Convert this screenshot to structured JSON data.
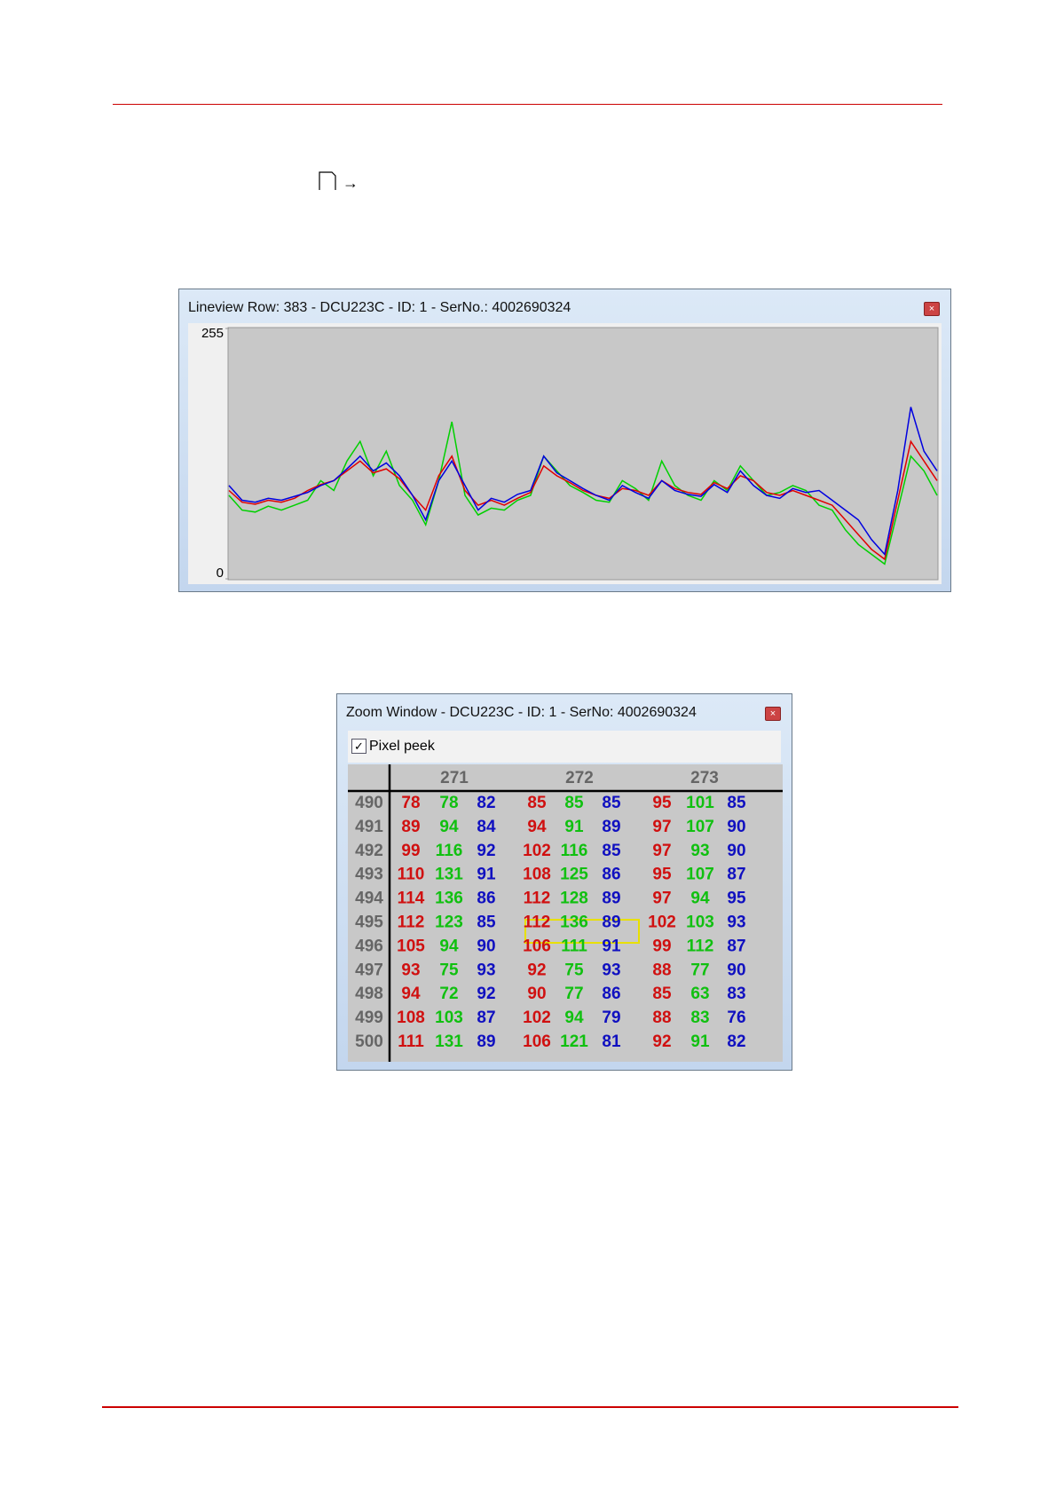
{
  "menu_arrow": "→",
  "lineview": {
    "title": "Lineview Row: 383 - DCU223C - ID: 1 - SerNo.: 4002690324",
    "type": "line",
    "ylim": [
      0,
      255
    ],
    "yticks": [
      0,
      255
    ],
    "series": [
      {
        "color": "#00d000",
        "values": [
          85,
          70,
          68,
          74,
          70,
          75,
          80,
          100,
          90,
          120,
          140,
          105,
          130,
          95,
          80,
          55,
          100,
          160,
          85,
          65,
          72,
          70,
          80,
          85,
          125,
          110,
          95,
          88,
          80,
          78,
          100,
          92,
          80,
          120,
          95,
          85,
          80,
          100,
          90,
          115,
          100,
          85,
          88,
          95,
          90,
          75,
          70,
          50,
          35,
          25,
          15,
          70,
          125,
          110,
          85
        ]
      },
      {
        "color": "#e00000",
        "values": [
          90,
          78,
          76,
          80,
          78,
          82,
          90,
          96,
          100,
          110,
          120,
          108,
          112,
          102,
          85,
          70,
          105,
          125,
          90,
          75,
          80,
          75,
          82,
          88,
          115,
          105,
          98,
          90,
          85,
          82,
          92,
          90,
          85,
          100,
          92,
          88,
          86,
          98,
          92,
          105,
          100,
          88,
          85,
          90,
          85,
          80,
          75,
          60,
          45,
          30,
          20,
          80,
          140,
          120,
          100
        ]
      },
      {
        "color": "#0000e0",
        "values": [
          95,
          80,
          78,
          82,
          80,
          84,
          88,
          95,
          100,
          112,
          125,
          110,
          118,
          105,
          85,
          60,
          100,
          120,
          95,
          70,
          82,
          78,
          86,
          90,
          125,
          108,
          100,
          92,
          85,
          80,
          95,
          88,
          82,
          100,
          90,
          86,
          84,
          96,
          88,
          110,
          95,
          85,
          82,
          92,
          88,
          90,
          80,
          70,
          60,
          40,
          25,
          90,
          175,
          130,
          110
        ]
      }
    ]
  },
  "zoom": {
    "title": "Zoom Window - DCU223C - ID: 1 - SerNo: 4002690324",
    "checkbox": "Pixel peek",
    "columns": [
      271,
      272,
      273
    ],
    "rows": [
      {
        "label": 490,
        "values": [
          78,
          78,
          82,
          85,
          85,
          85,
          95,
          101,
          85
        ]
      },
      {
        "label": 491,
        "values": [
          89,
          94,
          84,
          94,
          91,
          89,
          97,
          107,
          90
        ]
      },
      {
        "label": 492,
        "values": [
          99,
          116,
          92,
          102,
          116,
          85,
          97,
          93,
          90
        ]
      },
      {
        "label": 493,
        "values": [
          110,
          131,
          91,
          108,
          125,
          86,
          95,
          107,
          87
        ]
      },
      {
        "label": 494,
        "values": [
          114,
          136,
          86,
          112,
          128,
          89,
          97,
          94,
          95
        ]
      },
      {
        "label": 495,
        "values": [
          112,
          123,
          85,
          112,
          136,
          89,
          102,
          103,
          93
        ]
      },
      {
        "label": 496,
        "values": [
          105,
          94,
          90,
          106,
          111,
          91,
          99,
          112,
          87
        ]
      },
      {
        "label": 497,
        "values": [
          93,
          75,
          93,
          92,
          75,
          93,
          88,
          77,
          90
        ]
      },
      {
        "label": 498,
        "values": [
          94,
          72,
          92,
          90,
          77,
          86,
          85,
          63,
          83
        ]
      },
      {
        "label": 499,
        "values": [
          108,
          103,
          87,
          102,
          94,
          79,
          88,
          83,
          76
        ]
      },
      {
        "label": 500,
        "values": [
          111,
          131,
          89,
          106,
          121,
          81,
          92,
          91,
          82
        ]
      }
    ]
  }
}
